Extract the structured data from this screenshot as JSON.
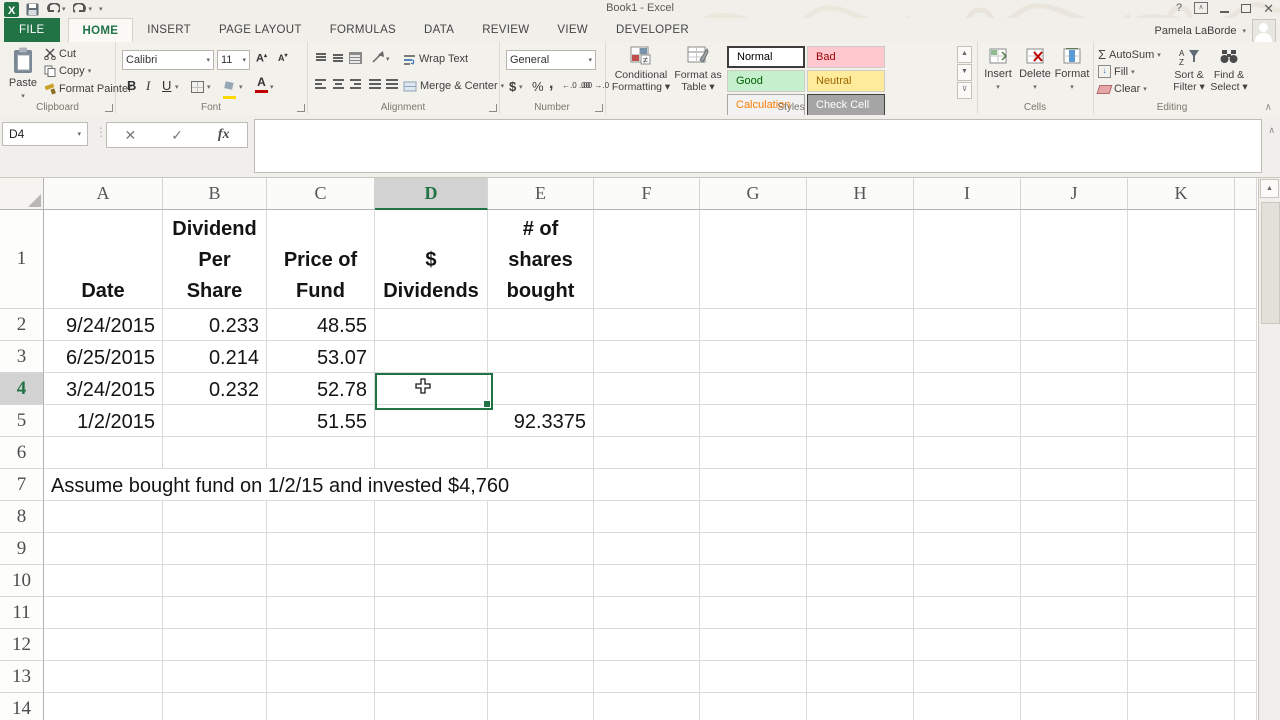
{
  "accent_color": "#217346",
  "title_bar": {
    "title": "Book1 - Excel",
    "help": "?",
    "minimize": "minimize",
    "restore": "restore",
    "close": "close"
  },
  "user": {
    "name": "Pamela LaBorde"
  },
  "tabs": [
    {
      "label": "FILE",
      "file": true
    },
    {
      "label": "HOME",
      "active": true
    },
    {
      "label": "INSERT"
    },
    {
      "label": "PAGE LAYOUT"
    },
    {
      "label": "FORMULAS"
    },
    {
      "label": "DATA"
    },
    {
      "label": "REVIEW"
    },
    {
      "label": "VIEW"
    },
    {
      "label": "DEVELOPER"
    }
  ],
  "ribbon": {
    "clipboard": {
      "label": "Clipboard",
      "paste": "Paste",
      "cut": "Cut",
      "copy": "Copy",
      "format_painter": "Format Painter"
    },
    "font": {
      "label": "Font",
      "font_name": "Calibri",
      "font_size": "11",
      "bold": "B",
      "italic": "I",
      "underline": "U"
    },
    "alignment": {
      "label": "Alignment",
      "wrap_text": "Wrap Text",
      "merge_center": "Merge & Center"
    },
    "number": {
      "label": "Number",
      "format": "General",
      "currency": "$",
      "percent": "%",
      "comma": ",",
      "inc_decimal": "←.0 .00",
      "dec_decimal": ".00 →.0"
    },
    "styles": {
      "label": "Styles",
      "conditional_formatting": "Conditional\nFormatting ▾",
      "format_as_table": "Format as\nTable ▾",
      "gallery": [
        {
          "name": "Normal",
          "bg": "#ffffff",
          "fg": "#000000",
          "border": "#3c3c3c",
          "selected": true
        },
        {
          "name": "Bad",
          "bg": "#ffc7ce",
          "fg": "#9c0006"
        },
        {
          "name": "Good",
          "bg": "#c6efce",
          "fg": "#006100"
        },
        {
          "name": "Neutral",
          "bg": "#ffeb9c",
          "fg": "#9c6500"
        },
        {
          "name": "Calculation",
          "bg": "#f2f2f2",
          "fg": "#fa7d00",
          "border": "#a6a6a6"
        },
        {
          "name": "Check Cell",
          "bg": "#a5a5a5",
          "fg": "#ffffff",
          "border": "#3f3f3f"
        }
      ]
    },
    "cells": {
      "label": "Cells",
      "insert": "Insert",
      "delete": "Delete",
      "format": "Format"
    },
    "editing": {
      "label": "Editing",
      "autosum": "AutoSum",
      "fill": "Fill",
      "clear": "Clear",
      "sort_filter": "Sort &\nFilter ▾",
      "find_select": "Find &\nSelect ▾"
    }
  },
  "formula_bar": {
    "name_box": "D4",
    "cancel": "✕",
    "enter": "✓",
    "insert_function": "fx",
    "formula": ""
  },
  "grid": {
    "column_headers": [
      "A",
      "B",
      "C",
      "D",
      "E",
      "F",
      "G",
      "H",
      "I",
      "J",
      "K"
    ],
    "selected_column": "D",
    "selected_row": "4",
    "active_cell": "D4",
    "rows": [
      {
        "n": "1",
        "cells": {
          "A": "Date",
          "B": "Dividend\nPer Share",
          "C": "Price of\nFund",
          "D": "$\nDividends",
          "E": "# of\nshares\nbought"
        }
      },
      {
        "n": "2",
        "cells": {
          "A": "9/24/2015",
          "B": "0.233",
          "C": "48.55"
        }
      },
      {
        "n": "3",
        "cells": {
          "A": "6/25/2015",
          "B": "0.214",
          "C": "53.07"
        }
      },
      {
        "n": "4",
        "cells": {
          "A": "3/24/2015",
          "B": "0.232",
          "C": "52.78"
        }
      },
      {
        "n": "5",
        "cells": {
          "A": "1/2/2015",
          "C": "51.55",
          "E": "92.3375"
        }
      },
      {
        "n": "6",
        "cells": {}
      },
      {
        "n": "7",
        "cells": {
          "A": "Assume bought fund on 1/2/15 and invested $4,760"
        }
      },
      {
        "n": "8",
        "cells": {}
      },
      {
        "n": "9",
        "cells": {}
      },
      {
        "n": "10",
        "cells": {}
      },
      {
        "n": "11",
        "cells": {}
      },
      {
        "n": "12",
        "cells": {}
      },
      {
        "n": "13",
        "cells": {}
      },
      {
        "n": "14",
        "cells": {}
      }
    ]
  }
}
